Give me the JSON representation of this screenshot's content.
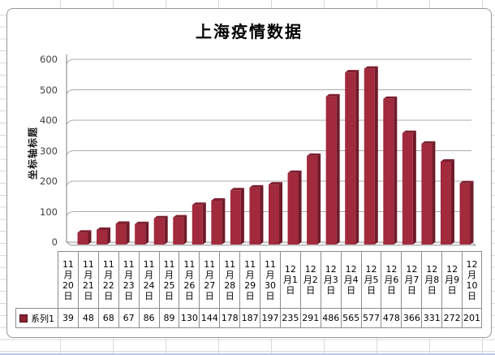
{
  "chart_data": {
    "type": "bar",
    "title": "上海疫情数据",
    "ylabel": "坐标轴标题",
    "xlabel": "",
    "categories": [
      "11月20日",
      "11月21日",
      "11月22日",
      "11月23日",
      "11月24日",
      "11月25日",
      "11月26日",
      "11月27日",
      "11月28日",
      "11月29日",
      "11月30日",
      "12月1日",
      "12月2日",
      "12月3日",
      "12月4日",
      "12月5日",
      "12月6日",
      "12月7日",
      "12月8日",
      "12月9日",
      "12月10日"
    ],
    "category_display_lines": [
      [
        "11",
        "月",
        "20",
        "日"
      ],
      [
        "11",
        "月",
        "21",
        "日"
      ],
      [
        "11",
        "月",
        "22",
        "日"
      ],
      [
        "11",
        "月",
        "23",
        "日"
      ],
      [
        "11",
        "月",
        "24",
        "日"
      ],
      [
        "11",
        "月",
        "25",
        "日"
      ],
      [
        "11",
        "月",
        "26",
        "日"
      ],
      [
        "11",
        "月",
        "27",
        "日"
      ],
      [
        "11",
        "月",
        "28",
        "日"
      ],
      [
        "11",
        "月",
        "29",
        "日"
      ],
      [
        "11",
        "月",
        "30",
        "日"
      ],
      [
        "12",
        "月1",
        "日"
      ],
      [
        "12",
        "月2",
        "日"
      ],
      [
        "12",
        "月3",
        "日"
      ],
      [
        "12",
        "月4",
        "日"
      ],
      [
        "12",
        "月5",
        "日"
      ],
      [
        "12",
        "月6",
        "日"
      ],
      [
        "12",
        "月7",
        "日"
      ],
      [
        "12",
        "月8",
        "日"
      ],
      [
        "12",
        "月9",
        "日"
      ],
      [
        "12",
        "月",
        "10",
        "日"
      ]
    ],
    "series": [
      {
        "name": "系列1",
        "values": [
          39,
          48,
          68,
          67,
          86,
          89,
          130,
          144,
          178,
          187,
          197,
          235,
          291,
          486,
          565,
          577,
          478,
          366,
          331,
          272,
          201
        ]
      }
    ],
    "y_ticks": [
      0,
      100,
      200,
      300,
      400,
      500,
      600
    ],
    "ylim": [
      0,
      600
    ],
    "grid": true,
    "legend_position": "data-table-left",
    "style": "3d-column",
    "colors": {
      "bar_front": "#A12A3C",
      "bar_top": "#7E1F30",
      "bar_side": "#6F1A2A",
      "legend_marker": "#8C2232",
      "gridline": "#ABABAB",
      "axis": "#808080",
      "floor_fill": "#F0F0F0",
      "table_border": "#8C8C8C"
    }
  }
}
